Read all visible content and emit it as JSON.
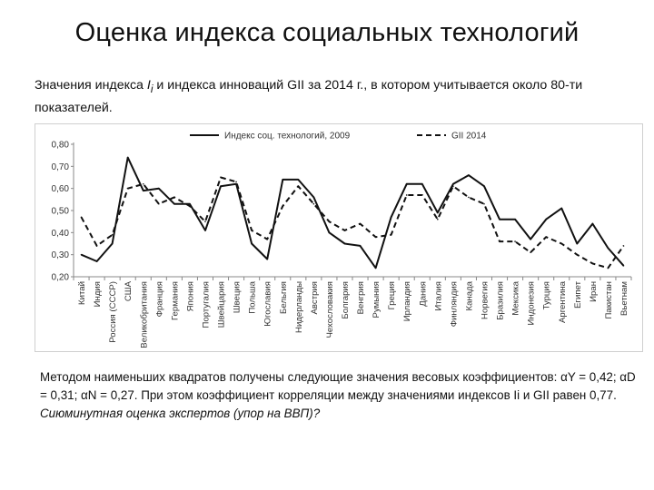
{
  "slide": {
    "title": "Оценка индекса социальных технологий",
    "intro_before": "Значения индекса ",
    "intro_var": "I",
    "intro_sub": "i",
    "intro_after": "  и индекса инноваций GII за 2014 г., в котором учитывается около 80-ти показателей.",
    "method_line1": "Методом наименьших квадратов получены следующие значения весовых коэффициентов: αY = 0,42; αD = 0,31; αN  = 0,27. При этом коэффициент корреляции между значениями индексов Ii и GII равен 0,77.",
    "question": "Сиюминутная оценка экспертов (упор на ВВП)?"
  },
  "chart_data": {
    "type": "line",
    "title": "",
    "xlabel": "",
    "ylabel": "",
    "ylim": [
      0.2,
      0.8
    ],
    "yticks": [
      "0,20",
      "0,30",
      "0,40",
      "0,50",
      "0,60",
      "0,70",
      "0,80"
    ],
    "grid": false,
    "legend_position": "top",
    "categories": [
      "Китай",
      "Индия",
      "Россия (СССР)",
      "США",
      "Великобритания",
      "Франция",
      "Германия",
      "Япония",
      "Португалия",
      "Швейцария",
      "Швеция",
      "Польша",
      "Югославия",
      "Бельгия",
      "Нидерланды",
      "Австрия",
      "Чехословакия",
      "Болгария",
      "Венгрия",
      "Румыния",
      "Греция",
      "Ирландия",
      "Дания",
      "Италия",
      "Финляндия",
      "Канада",
      "Норвегия",
      "Бразилия",
      "Мексика",
      "Индонезия",
      "Турция",
      "Аргентина",
      "Египет",
      "Иран",
      "Пакистан",
      "Вьетнам"
    ],
    "series": [
      {
        "name": "Индекс соц. технологий, 2009",
        "style": "solid",
        "color": "#111111",
        "values": [
          0.3,
          0.27,
          0.35,
          0.74,
          0.59,
          0.6,
          0.53,
          0.53,
          0.41,
          0.61,
          0.62,
          0.35,
          0.28,
          0.64,
          0.64,
          0.56,
          0.4,
          0.35,
          0.34,
          0.24,
          0.47,
          0.62,
          0.62,
          0.49,
          0.62,
          0.66,
          0.61,
          0.46,
          0.46,
          0.37,
          0.46,
          0.51,
          0.35,
          0.44,
          0.33,
          0.25
        ]
      },
      {
        "name": "GII 2014",
        "style": "dashed",
        "color": "#111111",
        "values": [
          0.47,
          0.34,
          0.39,
          0.6,
          0.62,
          0.53,
          0.56,
          0.52,
          0.45,
          0.65,
          0.63,
          0.41,
          0.37,
          0.52,
          0.61,
          0.53,
          0.45,
          0.41,
          0.44,
          0.38,
          0.39,
          0.57,
          0.57,
          0.46,
          0.61,
          0.56,
          0.53,
          0.36,
          0.36,
          0.31,
          0.38,
          0.35,
          0.3,
          0.26,
          0.24,
          0.34
        ]
      }
    ]
  }
}
